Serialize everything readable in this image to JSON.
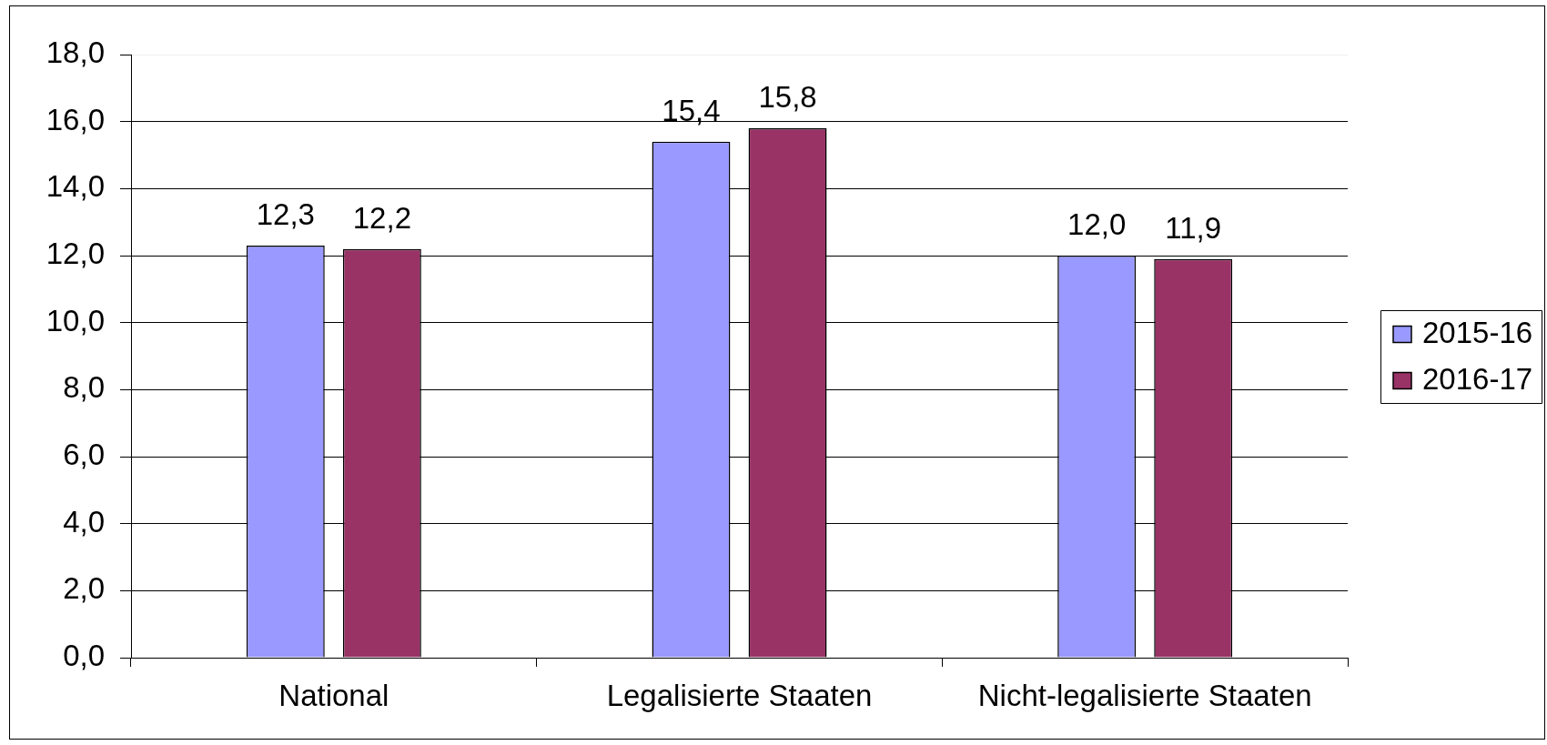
{
  "chart_data": {
    "type": "bar",
    "categories": [
      "National",
      "Legalisierte Staaten",
      "Nicht-legalisierte Staaten"
    ],
    "series": [
      {
        "name": "2015-16",
        "color": "#9999ff",
        "values": [
          12.3,
          15.4,
          12.0
        ],
        "value_labels": [
          "12,3",
          "15,4",
          "12,0"
        ]
      },
      {
        "name": "2016-17",
        "color": "#993366",
        "values": [
          12.2,
          15.8,
          11.9
        ],
        "value_labels": [
          "12,2",
          "15,8",
          "11,9"
        ]
      }
    ],
    "ylim": [
      0,
      18
    ],
    "yticks": [
      {
        "value": 0,
        "label": "0,0"
      },
      {
        "value": 2,
        "label": "2,0"
      },
      {
        "value": 4,
        "label": "4,0"
      },
      {
        "value": 6,
        "label": "6,0"
      },
      {
        "value": 8,
        "label": "8,0"
      },
      {
        "value": 10,
        "label": "10,0"
      },
      {
        "value": 12,
        "label": "12,0"
      },
      {
        "value": 14,
        "label": "14,0"
      },
      {
        "value": 16,
        "label": "16,0"
      },
      {
        "value": 18,
        "label": "18,0"
      }
    ],
    "grid": "y",
    "legend": "right"
  }
}
